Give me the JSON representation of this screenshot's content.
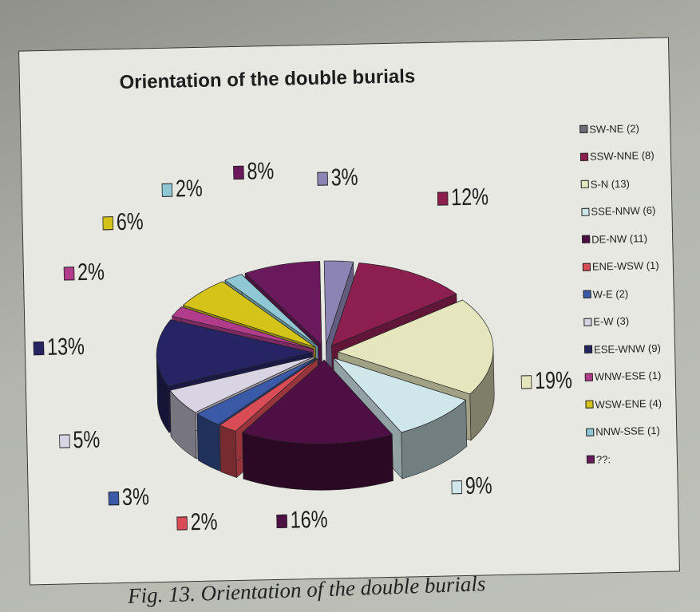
{
  "chart_data": {
    "type": "pie",
    "title": "Orientation of the double burials",
    "legend_position": "right",
    "legend": [
      {
        "label": "SW-NE (2)",
        "color": "#6e6e78"
      },
      {
        "label": "SSW-NNE (8)",
        "color": "#8c1f4f"
      },
      {
        "label": "S-N (13)",
        "color": "#e6e6be"
      },
      {
        "label": "SSE-NNW (6)",
        "color": "#cfe6ea"
      },
      {
        "label": "DE-NW (11)",
        "color": "#4e1044"
      },
      {
        "label": "ENE-WSW (1)",
        "color": "#d94c56"
      },
      {
        "label": "W-E (2)",
        "color": "#3a5aa8"
      },
      {
        "label": "E-W (3)",
        "color": "#d8d4e4"
      },
      {
        "label": "ESE-WNW (9)",
        "color": "#262463"
      },
      {
        "label": "WNW-ESE (1)",
        "color": "#b23c8c"
      },
      {
        "label": "WSW-ENE (4)",
        "color": "#d4c41a"
      },
      {
        "label": "NNW-SSE (1)",
        "color": "#8fc8d4"
      },
      {
        "label": "??:",
        "color": "#6a1a5c"
      }
    ],
    "slices": [
      {
        "label": "3%",
        "value": 3,
        "color": "#8c84b4"
      },
      {
        "label": "12%",
        "value": 12,
        "color": "#8c1f4f"
      },
      {
        "label": "19%",
        "value": 19,
        "color": "#e6e6be"
      },
      {
        "label": "9%",
        "value": 9,
        "color": "#cfe6ea"
      },
      {
        "label": "16%",
        "value": 16,
        "color": "#4e1044"
      },
      {
        "label": "2%",
        "value": 2,
        "color": "#d94c56"
      },
      {
        "label": "3%",
        "value": 3,
        "color": "#3a5aa8"
      },
      {
        "label": "5%",
        "value": 5,
        "color": "#d8d4e4"
      },
      {
        "label": "13%",
        "value": 13,
        "color": "#262463"
      },
      {
        "label": "2%",
        "value": 2,
        "color": "#b23c8c"
      },
      {
        "label": "6%",
        "value": 6,
        "color": "#d4c41a"
      },
      {
        "label": "2%",
        "value": 2,
        "color": "#8fc8d4"
      },
      {
        "label": "8%",
        "value": 8,
        "color": "#6a1a5c"
      }
    ]
  },
  "caption": "Fig. 13. Orientation of the double burials"
}
